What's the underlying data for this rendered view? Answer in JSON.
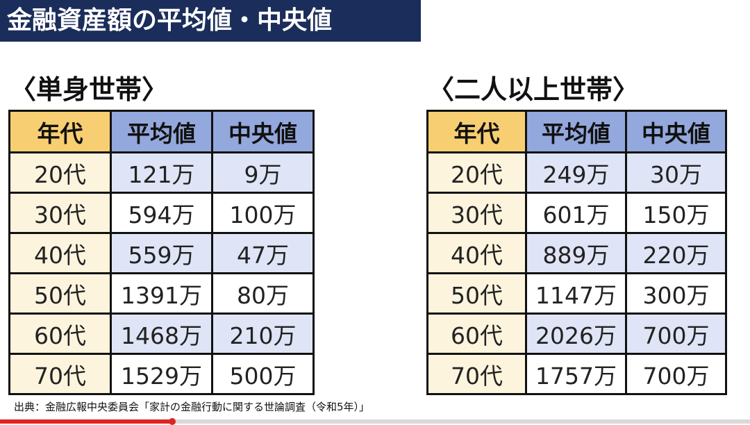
{
  "title": "金融資産額の平均値・中央値",
  "headers": {
    "age": "年代",
    "mean": "平均値",
    "median": "中央値"
  },
  "single": {
    "heading": "〈単身世帯〉",
    "rows": [
      {
        "age": "20代",
        "mean": "121万",
        "median": "9万"
      },
      {
        "age": "30代",
        "mean": "594万",
        "median": "100万"
      },
      {
        "age": "40代",
        "mean": "559万",
        "median": "47万"
      },
      {
        "age": "50代",
        "mean": "1391万",
        "median": "80万"
      },
      {
        "age": "60代",
        "mean": "1468万",
        "median": "210万"
      },
      {
        "age": "70代",
        "mean": "1529万",
        "median": "500万"
      }
    ]
  },
  "multi": {
    "heading": "〈二人以上世帯〉",
    "rows": [
      {
        "age": "20代",
        "mean": "249万",
        "median": "30万"
      },
      {
        "age": "30代",
        "mean": "601万",
        "median": "150万"
      },
      {
        "age": "40代",
        "mean": "889万",
        "median": "220万"
      },
      {
        "age": "50代",
        "mean": "1147万",
        "median": "300万"
      },
      {
        "age": "60代",
        "mean": "2026万",
        "median": "700万"
      },
      {
        "age": "70代",
        "mean": "1757万",
        "median": "700万"
      }
    ]
  },
  "source": "出典：金融広報中央委員会「家計の金融行動に関する世論調査（令和5年）」",
  "video_progress": 0.23,
  "colors": {
    "title_bg": "#1b2d5a",
    "age_header": "#f7cf72",
    "value_header": "#93a8dc",
    "age_cell": "#fdf4de",
    "value_shaded": "#dfe5f6",
    "progress": "#e02424"
  }
}
